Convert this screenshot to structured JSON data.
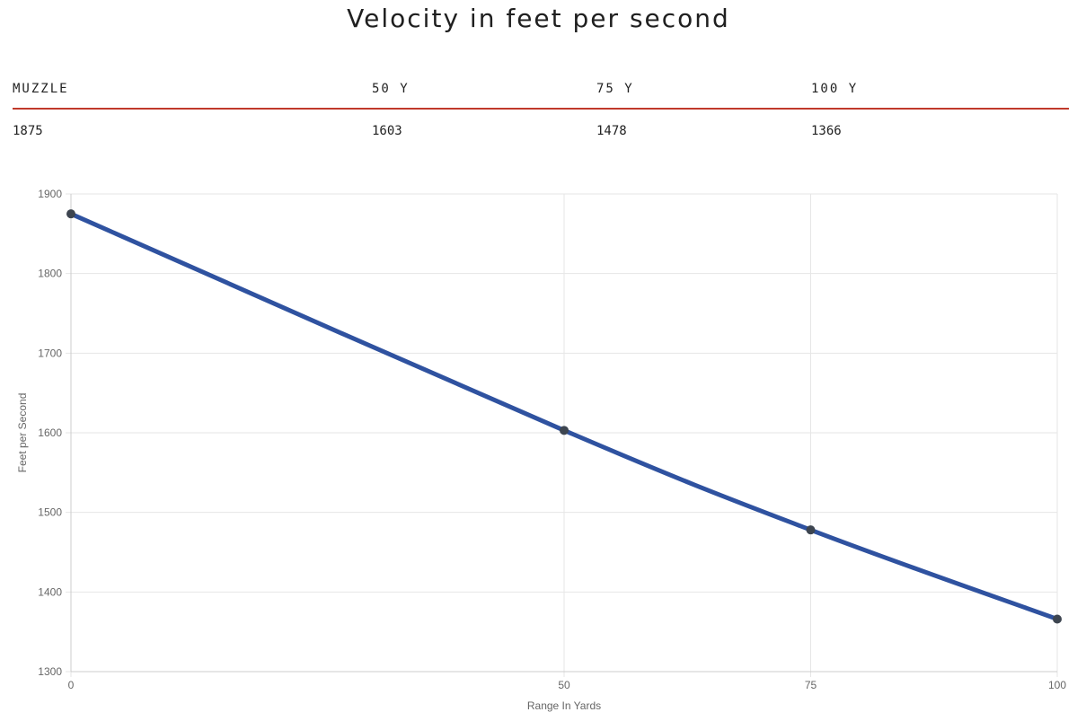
{
  "title": "Velocity in feet per second",
  "table": {
    "headers": [
      "MUZZLE",
      "50 Y",
      "75 Y",
      "100 Y"
    ],
    "values": [
      "1875",
      "1603",
      "1478",
      "1366"
    ]
  },
  "chart_data": {
    "type": "line",
    "title": "",
    "xlabel": "Range In Yards",
    "ylabel": "Feet per Second",
    "x": [
      0,
      50,
      75,
      100
    ],
    "x_ticks": [
      "0",
      "50",
      "75",
      "100"
    ],
    "y_ticks": [
      "1300",
      "1400",
      "1500",
      "1600",
      "1700",
      "1800",
      "1900"
    ],
    "ylim": [
      1300,
      1900
    ],
    "grid": true,
    "legend": "none",
    "series": [
      {
        "values": [
          1875,
          1603,
          1478,
          1366
        ],
        "color": "#2f52a0",
        "point_color": "#3d4550"
      }
    ]
  },
  "colors": {
    "table_rule": "#c0392b",
    "grid": "#e6e6e6",
    "axis": "#cccccc"
  }
}
